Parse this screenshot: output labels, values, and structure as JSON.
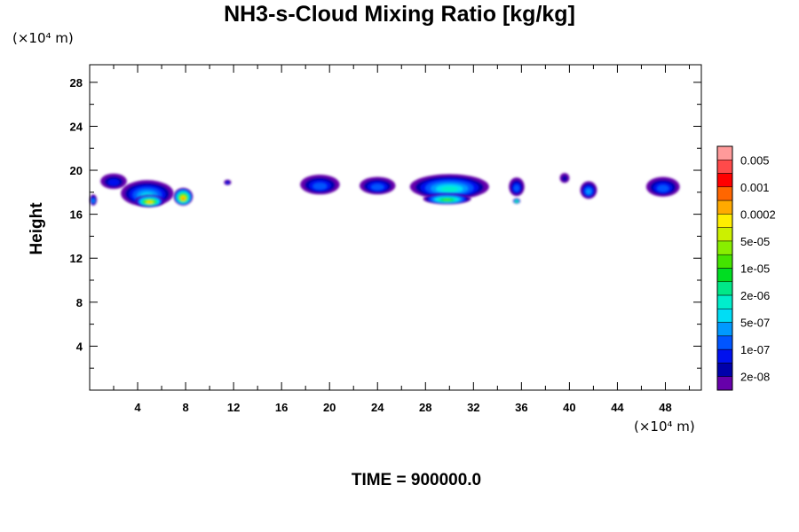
{
  "chart_data": {
    "type": "heatmap",
    "title": "NH3-s-Cloud Mixing Ratio [kg/kg]",
    "xlabel": "",
    "ylabel": "Height",
    "x_unit": "(×10⁴ m)",
    "y_unit": "(×10⁴ m)",
    "xlim": [
      0,
      51
    ],
    "ylim": [
      0,
      29.6
    ],
    "x_ticks": [
      4,
      8,
      12,
      16,
      20,
      24,
      28,
      32,
      36,
      40,
      44,
      48
    ],
    "y_ticks": [
      4,
      8,
      12,
      16,
      20,
      24,
      28
    ],
    "colorbar": {
      "labels": [
        "0.005",
        "0.001",
        "0.0002",
        "5e-05",
        "1e-05",
        "2e-06",
        "5e-07",
        "1e-07",
        "2e-08"
      ],
      "colors": [
        "#ff9a9a",
        "#ff4a4a",
        "#ff0000",
        "#ff6600",
        "#ffaa00",
        "#ffee00",
        "#ccf000",
        "#88ee00",
        "#44e400",
        "#00dd22",
        "#00e888",
        "#00eecc",
        "#00ddf5",
        "#0099ff",
        "#0055ff",
        "#0011ee",
        "#0000aa",
        "#6600aa"
      ]
    },
    "cloud_cells": [
      {
        "x": 2.0,
        "y": 19.0,
        "w": 2.2,
        "h": 1.4,
        "level": 3
      },
      {
        "x": 0.3,
        "y": 17.3,
        "w": 0.6,
        "h": 1.0,
        "level": 5
      },
      {
        "x": 4.8,
        "y": 17.9,
        "w": 4.4,
        "h": 2.4,
        "level": 6
      },
      {
        "x": 5.0,
        "y": 17.2,
        "w": 2.4,
        "h": 1.1,
        "level": 14
      },
      {
        "x": 7.8,
        "y": 17.6,
        "w": 1.6,
        "h": 1.6,
        "level": 15
      },
      {
        "x": 11.5,
        "y": 18.9,
        "w": 0.6,
        "h": 0.5,
        "level": 3
      },
      {
        "x": 19.2,
        "y": 18.7,
        "w": 3.3,
        "h": 1.8,
        "level": 4
      },
      {
        "x": 24.0,
        "y": 18.6,
        "w": 3.0,
        "h": 1.6,
        "level": 4
      },
      {
        "x": 30.0,
        "y": 18.5,
        "w": 6.6,
        "h": 2.3,
        "level": 7
      },
      {
        "x": 29.8,
        "y": 17.4,
        "w": 4.0,
        "h": 1.0,
        "level": 10
      },
      {
        "x": 35.6,
        "y": 18.5,
        "w": 1.3,
        "h": 1.7,
        "level": 4
      },
      {
        "x": 35.6,
        "y": 17.2,
        "w": 0.6,
        "h": 0.5,
        "level": 10
      },
      {
        "x": 39.6,
        "y": 19.3,
        "w": 0.8,
        "h": 0.9,
        "level": 2
      },
      {
        "x": 41.6,
        "y": 18.2,
        "w": 1.4,
        "h": 1.6,
        "level": 5
      },
      {
        "x": 47.8,
        "y": 18.5,
        "w": 2.8,
        "h": 1.8,
        "level": 4
      }
    ]
  },
  "footer": {
    "time_text": "TIME = 900000.0"
  }
}
